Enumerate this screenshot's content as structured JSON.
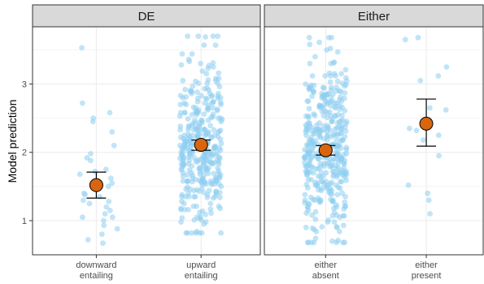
{
  "chart_data": {
    "type": "scatter",
    "ylabel": "Model prediction",
    "ylim": [
      0.5,
      3.85
    ],
    "y_ticks": [
      "1",
      "2",
      "3"
    ],
    "y_tick_values": [
      1,
      2,
      3
    ],
    "grid": true,
    "colors": {
      "points": "#8ecdf0",
      "mean": "#d9660f",
      "strip_bg": "#d9d9d9",
      "grid": "#ebebeb",
      "border": "#333333"
    },
    "panels": [
      {
        "strip": "DE",
        "categories": [
          {
            "label_line1": "downward",
            "label_line2": "entailing",
            "mean": 1.52,
            "ci_low": 1.33,
            "ci_high": 1.71,
            "points": [
              0.67,
              0.72,
              0.8,
              0.88,
              0.93,
              1.0,
              1.05,
              1.05,
              1.1,
              1.15,
              1.2,
              1.25,
              1.28,
              1.3,
              1.35,
              1.38,
              1.4,
              1.5,
              1.55,
              1.62,
              1.68,
              1.72,
              1.75,
              1.88,
              1.92,
              1.98,
              2.1,
              2.3,
              2.45,
              2.5,
              2.58,
              2.72,
              3.53
            ]
          },
          {
            "label_line1": "upward",
            "label_line2": "entailing",
            "mean": 2.11,
            "ci_low": 2.03,
            "ci_high": 2.18,
            "points": []
          }
        ]
      },
      {
        "strip": "Either",
        "categories": [
          {
            "label_line1": "either",
            "label_line2": "absent",
            "mean": 2.03,
            "ci_low": 1.96,
            "ci_high": 2.1,
            "points": []
          },
          {
            "label_line1": "either",
            "label_line2": "present",
            "mean": 2.42,
            "ci_low": 2.09,
            "ci_high": 2.78,
            "points": [
              1.1,
              1.3,
              1.4,
              1.52,
              1.95,
              2.18,
              2.25,
              2.32,
              2.35,
              2.62,
              2.65,
              3.05,
              3.12,
              3.25,
              3.65,
              3.68
            ]
          }
        ]
      }
    ],
    "dense_groups": {
      "upward_entailing": {
        "count": 360,
        "min": 0.82,
        "max": 3.7
      },
      "either_absent": {
        "count": 400,
        "min": 0.68,
        "max": 3.68
      }
    }
  }
}
